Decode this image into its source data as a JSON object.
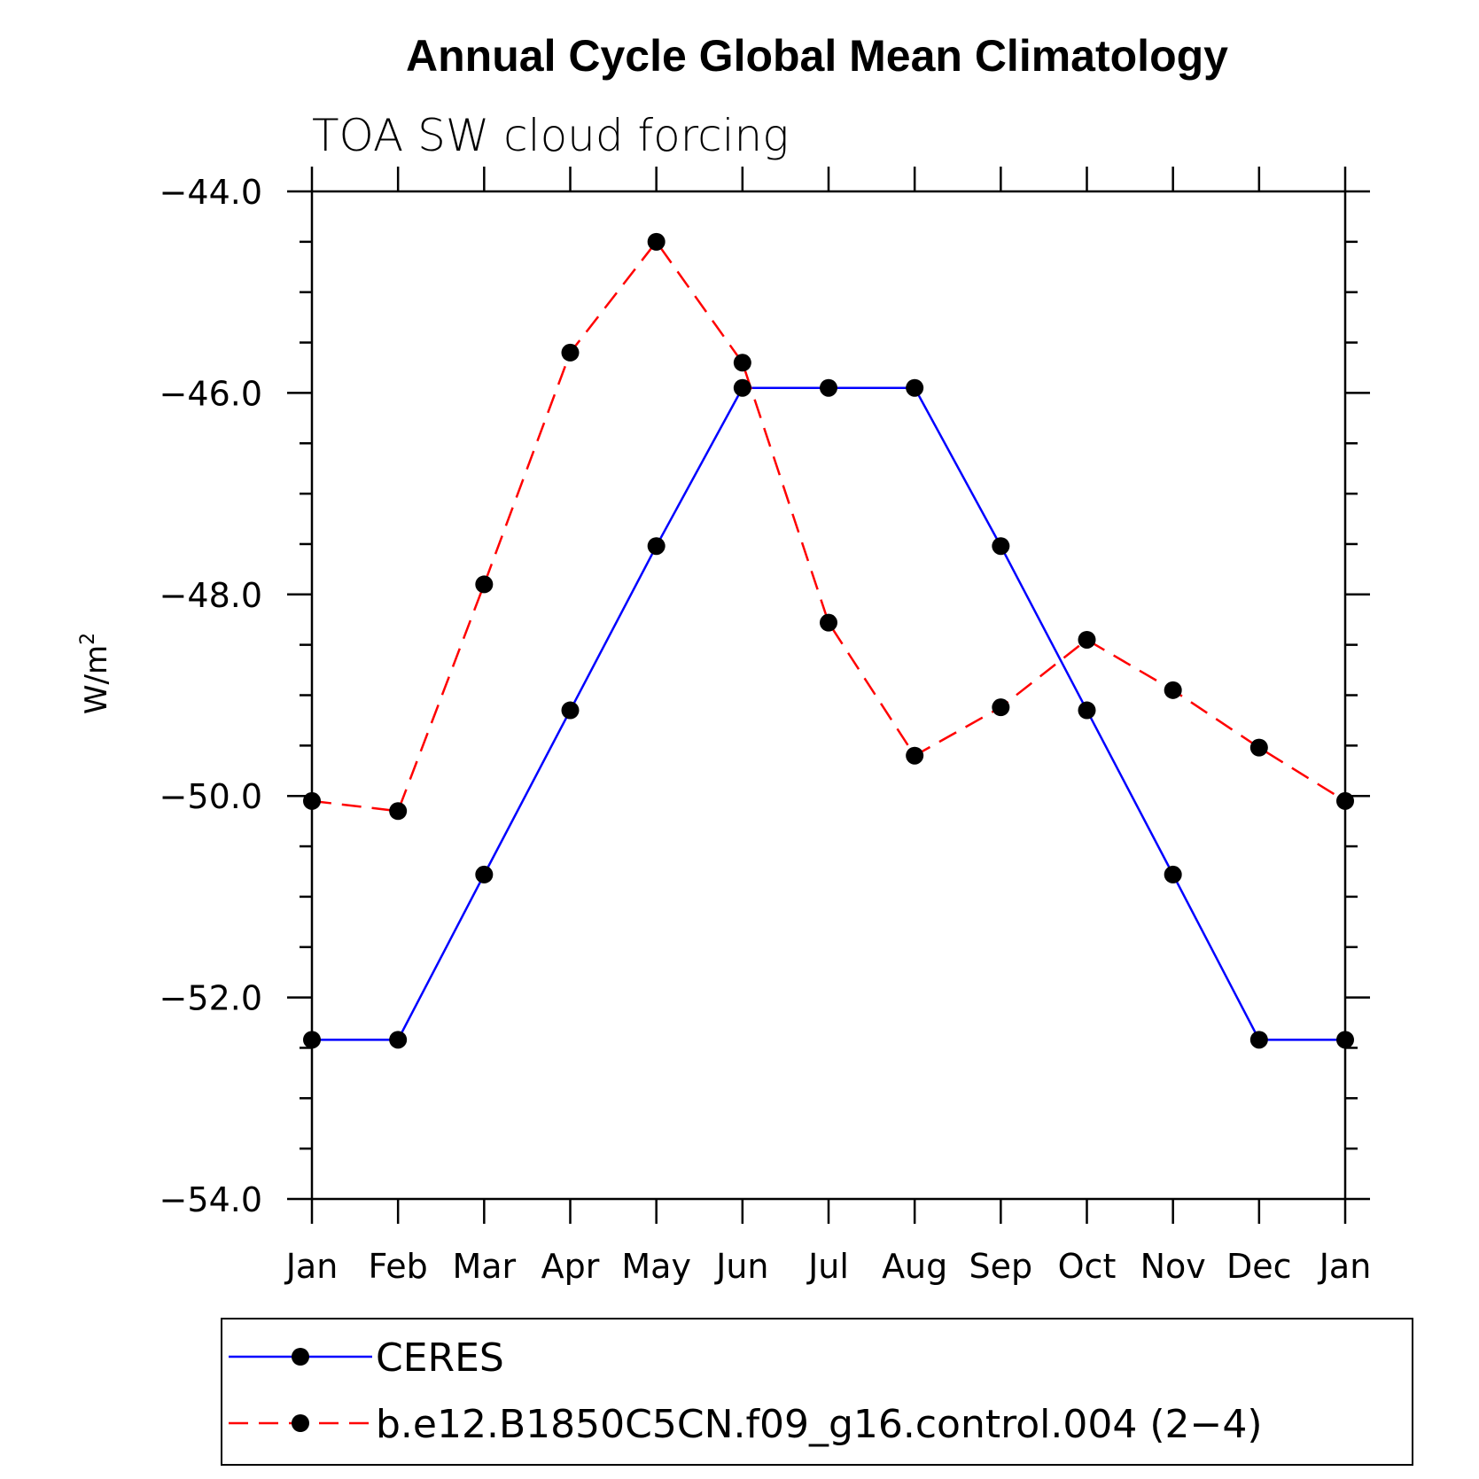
{
  "chart_data": {
    "type": "line",
    "title": "Annual Cycle Global Mean Climatology",
    "subtitle": "TOA SW cloud forcing",
    "xlabel": "",
    "ylabel": "W/m",
    "ylabel_sup": "2",
    "categories": [
      "Jan",
      "Feb",
      "Mar",
      "Apr",
      "May",
      "Jun",
      "Jul",
      "Aug",
      "Sep",
      "Oct",
      "Nov",
      "Dec",
      "Jan"
    ],
    "ylim": [
      -54.0,
      -44.0
    ],
    "yticks": [
      -44.0,
      -46.0,
      -48.0,
      -50.0,
      -52.0,
      -54.0
    ],
    "ytick_labels": [
      "−44.0",
      "−46.0",
      "−48.0",
      "−50.0",
      "−52.0",
      "−54.0"
    ],
    "grid": false,
    "legend_position": "bottom",
    "series": [
      {
        "name": "CERES",
        "color": "#0000ff",
        "line_style": "solid",
        "marker": "filled-circle",
        "values": [
          -52.42,
          -52.42,
          -50.78,
          -49.15,
          -47.52,
          -45.95,
          -45.95,
          -45.95,
          -47.52,
          -49.15,
          -50.78,
          -52.42,
          -52.42
        ]
      },
      {
        "name": "b.e12.B1850C5CN.f09_g16.control.004 (2−4)",
        "color": "#ff0000",
        "line_style": "dashed",
        "marker": "filled-circle",
        "values": [
          -50.05,
          -50.15,
          -47.9,
          -45.6,
          -44.5,
          -45.7,
          -48.28,
          -49.6,
          -49.12,
          -48.45,
          -48.95,
          -49.52,
          -50.05
        ]
      }
    ]
  }
}
